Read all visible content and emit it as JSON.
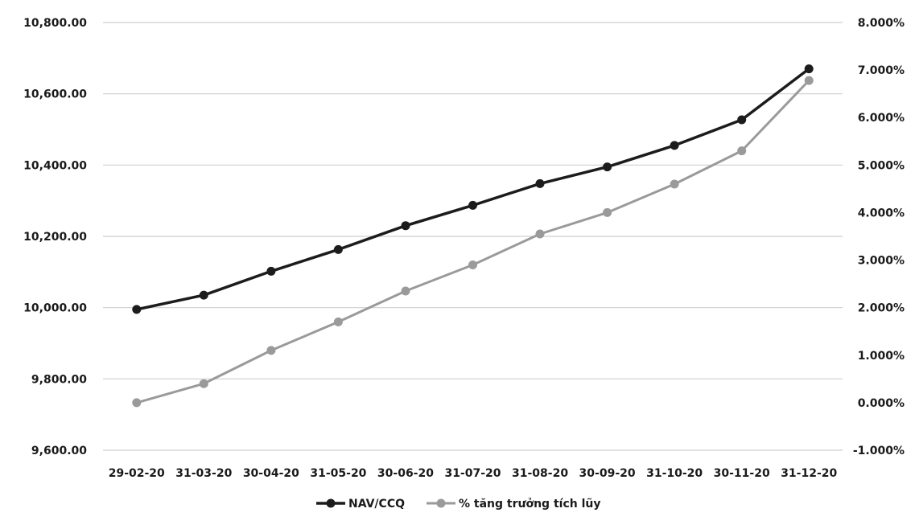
{
  "chart_data": {
    "type": "line",
    "title": "",
    "xlabel": "",
    "ylabel": "",
    "categories": [
      "29-02-20",
      "31-03-20",
      "30-04-20",
      "31-05-20",
      "30-06-20",
      "31-07-20",
      "31-08-20",
      "30-09-20",
      "31-10-20",
      "30-11-20",
      "31-12-20"
    ],
    "y_left": {
      "range": [
        9600,
        10800
      ],
      "ticks": [
        9600,
        9800,
        10000,
        10200,
        10400,
        10600,
        10800
      ],
      "tick_labels": [
        "9,600.00",
        "9,800.00",
        "10,000.00",
        "10,200.00",
        "10,400.00",
        "10,600.00",
        "10,800.00"
      ]
    },
    "y_right": {
      "range": [
        -1,
        8
      ],
      "ticks": [
        -1,
        0,
        1,
        2,
        3,
        4,
        5,
        6,
        7,
        8
      ],
      "tick_labels": [
        "-1.000%",
        "0.000%",
        "1.000%",
        "2.000%",
        "3.000%",
        "4.000%",
        "5.000%",
        "6.000%",
        "7.000%",
        "8.000%"
      ]
    },
    "grid": true,
    "legend_position": "bottom",
    "series": [
      {
        "name": "NAV/CCQ",
        "axis": "left",
        "color": "#1c1c1c",
        "values": [
          9995,
          10035,
          10102,
          10163,
          10230,
          10287,
          10348,
          10395,
          10455,
          10527,
          10670
        ]
      },
      {
        "name": "% tăng trưởng tích lũy",
        "axis": "right",
        "color": "#9a9a9a",
        "values": [
          0.0,
          0.4,
          1.1,
          1.7,
          2.35,
          2.9,
          3.55,
          4.0,
          4.6,
          5.3,
          6.78
        ]
      }
    ]
  }
}
